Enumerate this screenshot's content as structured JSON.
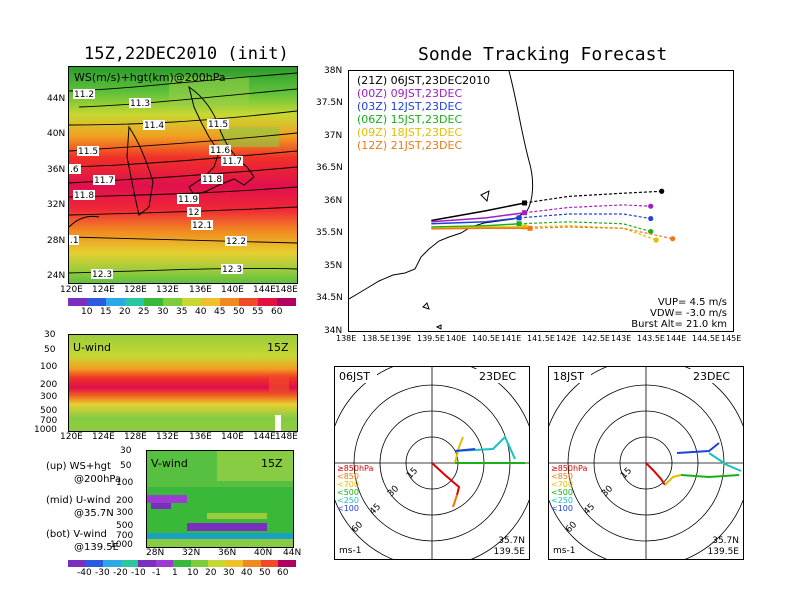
{
  "left": {
    "title": "15Z,22DEC2010 (init)",
    "ws": {
      "label": "WS(m/s)+hgt(km)@200hPa",
      "lat_ticks": [
        "44N",
        "40N",
        "36N",
        "32N",
        "28N",
        "24N"
      ],
      "lon_ticks": [
        "120E",
        "124E",
        "128E",
        "132E",
        "136E",
        "140E",
        "144E",
        "148E"
      ],
      "contours": [
        "11.2",
        "11.3",
        "11.4",
        "11.5",
        "11.5",
        "11.6",
        "11.7",
        "11.7",
        "11.8",
        "11.8",
        "11.9",
        "12",
        "12.1",
        "12.2",
        "12.3",
        "12.3",
        ".6",
        ".1"
      ],
      "colorbar": [
        "10",
        "15",
        "20",
        "25",
        "30",
        "35",
        "40",
        "45",
        "50",
        "55",
        "60"
      ]
    },
    "u": {
      "label": "U-wind",
      "time": "15Z",
      "p_ticks": [
        "30",
        "50",
        "100",
        "200",
        "300",
        "500",
        "700",
        "1000"
      ],
      "lon_ticks": [
        "120E",
        "124E",
        "128E",
        "132E",
        "136E",
        "140E",
        "144E",
        "148E"
      ]
    },
    "v": {
      "label": "V-wind",
      "time": "15Z",
      "p_ticks": [
        "30",
        "50",
        "100",
        "200",
        "300",
        "500",
        "700",
        "1000"
      ],
      "lat_ticks": [
        "28N",
        "32N",
        "36N",
        "40N",
        "44N"
      ],
      "colorbar": [
        "-40",
        "-30",
        "-20",
        "-10",
        "-1",
        "1",
        "10",
        "20",
        "30",
        "40",
        "50",
        "60"
      ]
    },
    "legend": [
      {
        "a": "(up) WS+hgt",
        "b": "@200hPa"
      },
      {
        "a": "(mid) U-wind",
        "b": "@35.7N"
      },
      {
        "a": "(bot) V-wind",
        "b": "@139.5E"
      }
    ]
  },
  "right": {
    "title": "Sonde Tracking Forecast",
    "map": {
      "lat_ticks": [
        "38N",
        "37.5N",
        "37N",
        "36.5N",
        "36N",
        "35.5N",
        "35N",
        "34.5N",
        "34N"
      ],
      "lon_ticks": [
        "138E",
        "138.5E",
        "139E",
        "139.5E",
        "140E",
        "140.5E",
        "141E",
        "141.5E",
        "142E",
        "142.5E",
        "143E",
        "143.5E",
        "144E",
        "144.5E",
        "145E"
      ],
      "legend": [
        {
          "text": "(21Z) 06JST,23DEC2010",
          "color": "#000000"
        },
        {
          "text": "(00Z) 09JST,23DEC",
          "color": "#a020c0"
        },
        {
          "text": "(03Z) 12JST,23DEC",
          "color": "#2040e0"
        },
        {
          "text": "(06Z) 15JST,23DEC",
          "color": "#18b018"
        },
        {
          "text": "(09Z) 18JST,23DEC",
          "color": "#e0c000"
        },
        {
          "text": "(12Z) 21JST,23DEC",
          "color": "#f07818"
        }
      ],
      "info": [
        "VUP= 4.5 m/s",
        "VDW= -3.0 m/s",
        "Burst Alt= 21.0 km"
      ]
    },
    "polar1": {
      "time": "06JST",
      "date": "23DEC",
      "lat": "35.7N",
      "lon": "139.5E",
      "unit": "ms-1",
      "rings": [
        "15",
        "30",
        "45",
        "60"
      ]
    },
    "polar2": {
      "time": "18JST",
      "date": "23DEC",
      "lat": "35.7N",
      "lon": "139.5E",
      "unit": "ms-1",
      "rings": [
        "15",
        "30",
        "45",
        "60"
      ]
    },
    "hodo_legend": [
      {
        "text": "≥850hPa",
        "color": "#e00000"
      },
      {
        "text": "<850",
        "color": "#f07800"
      },
      {
        "text": "<700",
        "color": "#e0c000"
      },
      {
        "text": "<500",
        "color": "#18b018"
      },
      {
        "text": "<250",
        "color": "#18c0c0"
      },
      {
        "text": "<100",
        "color": "#2040e0"
      }
    ]
  },
  "chart_data": [
    {
      "type": "heatmap",
      "title": "15Z,22DEC2010 (init)",
      "label": "WS(m/s)+hgt(km)@200hPa",
      "x_range": [
        "120E",
        "148E"
      ],
      "y_range": [
        "24N",
        "44N"
      ],
      "colorbar": [
        10,
        15,
        20,
        25,
        30,
        35,
        40,
        45,
        50,
        55,
        60
      ]
    },
    {
      "type": "heatmap",
      "label": "U-wind",
      "time": "15Z",
      "x_range": [
        "120E",
        "148E"
      ],
      "y": [
        30,
        50,
        100,
        200,
        300,
        500,
        700,
        1000
      ]
    },
    {
      "type": "heatmap",
      "label": "V-wind",
      "time": "15Z",
      "x_range": [
        "28N",
        "44N"
      ],
      "y": [
        30,
        50,
        100,
        200,
        300,
        500,
        700,
        1000
      ],
      "colorbar": [
        -40,
        -30,
        -20,
        -10,
        -1,
        1,
        10,
        20,
        30,
        40,
        50,
        60
      ]
    },
    {
      "type": "line",
      "title": "Sonde Tracking Forecast",
      "xlim": [
        138,
        145
      ],
      "ylim": [
        34,
        38
      ],
      "series": [
        {
          "name": "(21Z) 06JST,23DEC2010",
          "x": [
            139.5,
            140.5,
            141.2,
            142.0,
            143.0,
            143.7
          ],
          "y": [
            35.7,
            35.85,
            35.97,
            36.07,
            36.12,
            36.15
          ]
        },
        {
          "name": "(00Z) 09JST,23DEC",
          "x": [
            139.5,
            140.5,
            141.2,
            142.0,
            143.0,
            143.5
          ],
          "y": [
            35.68,
            35.74,
            35.82,
            35.9,
            35.94,
            35.92
          ]
        },
        {
          "name": "(03Z) 12JST,23DEC",
          "x": [
            139.5,
            140.5,
            141.1,
            142.0,
            143.0,
            143.5
          ],
          "y": [
            35.65,
            35.68,
            35.74,
            35.8,
            35.8,
            35.73
          ]
        },
        {
          "name": "(06Z) 15JST,23DEC",
          "x": [
            139.5,
            140.5,
            141.1,
            142.0,
            143.0,
            143.5
          ],
          "y": [
            35.6,
            35.62,
            35.65,
            35.68,
            35.65,
            35.53
          ]
        },
        {
          "name": "(09Z) 18JST,23DEC",
          "x": [
            139.5,
            140.5,
            141.2,
            142.0,
            143.0,
            143.6
          ],
          "y": [
            35.58,
            35.6,
            35.6,
            35.62,
            35.58,
            35.4
          ]
        },
        {
          "name": "(12Z) 21JST,23DEC",
          "x": [
            139.5,
            140.5,
            141.3,
            142.0,
            143.0,
            143.9
          ],
          "y": [
            35.57,
            35.58,
            35.58,
            35.6,
            35.58,
            35.42
          ]
        }
      ]
    }
  ]
}
